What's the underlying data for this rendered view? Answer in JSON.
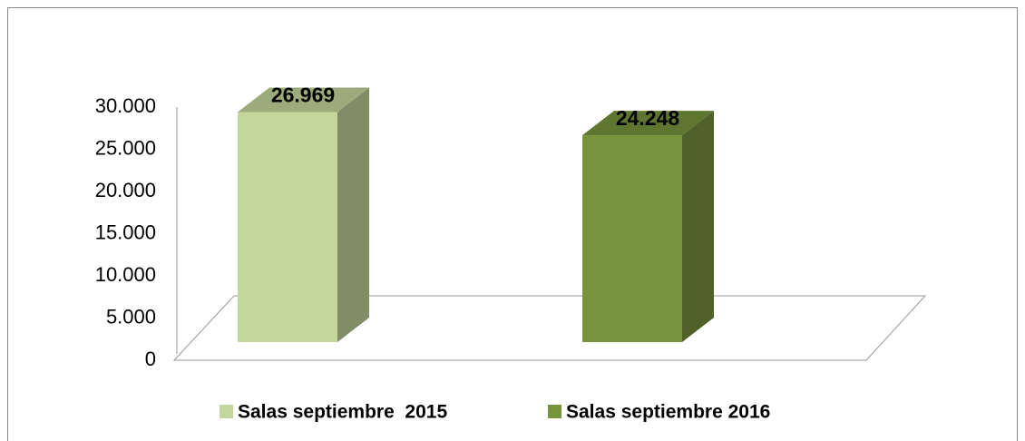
{
  "chart_data": {
    "type": "bar3d",
    "series": [
      {
        "name": "Salas septiembre  2015",
        "color": "#c3d69b",
        "values": [
          26969
        ],
        "value_labels": [
          "26.969"
        ]
      },
      {
        "name": "Salas septiembre 2016",
        "color": "#77933c",
        "values": [
          24248
        ],
        "value_labels": [
          "24.248"
        ]
      }
    ],
    "ylim": [
      0,
      30000
    ],
    "yticks": [
      {
        "value": 0,
        "label": "0"
      },
      {
        "value": 5000,
        "label": "5.000"
      },
      {
        "value": 10000,
        "label": "10.000"
      },
      {
        "value": 15000,
        "label": "15.000"
      },
      {
        "value": 20000,
        "label": "20.000"
      },
      {
        "value": 25000,
        "label": "25.000"
      },
      {
        "value": 30000,
        "label": "30.000"
      }
    ],
    "legend": "bottom"
  }
}
